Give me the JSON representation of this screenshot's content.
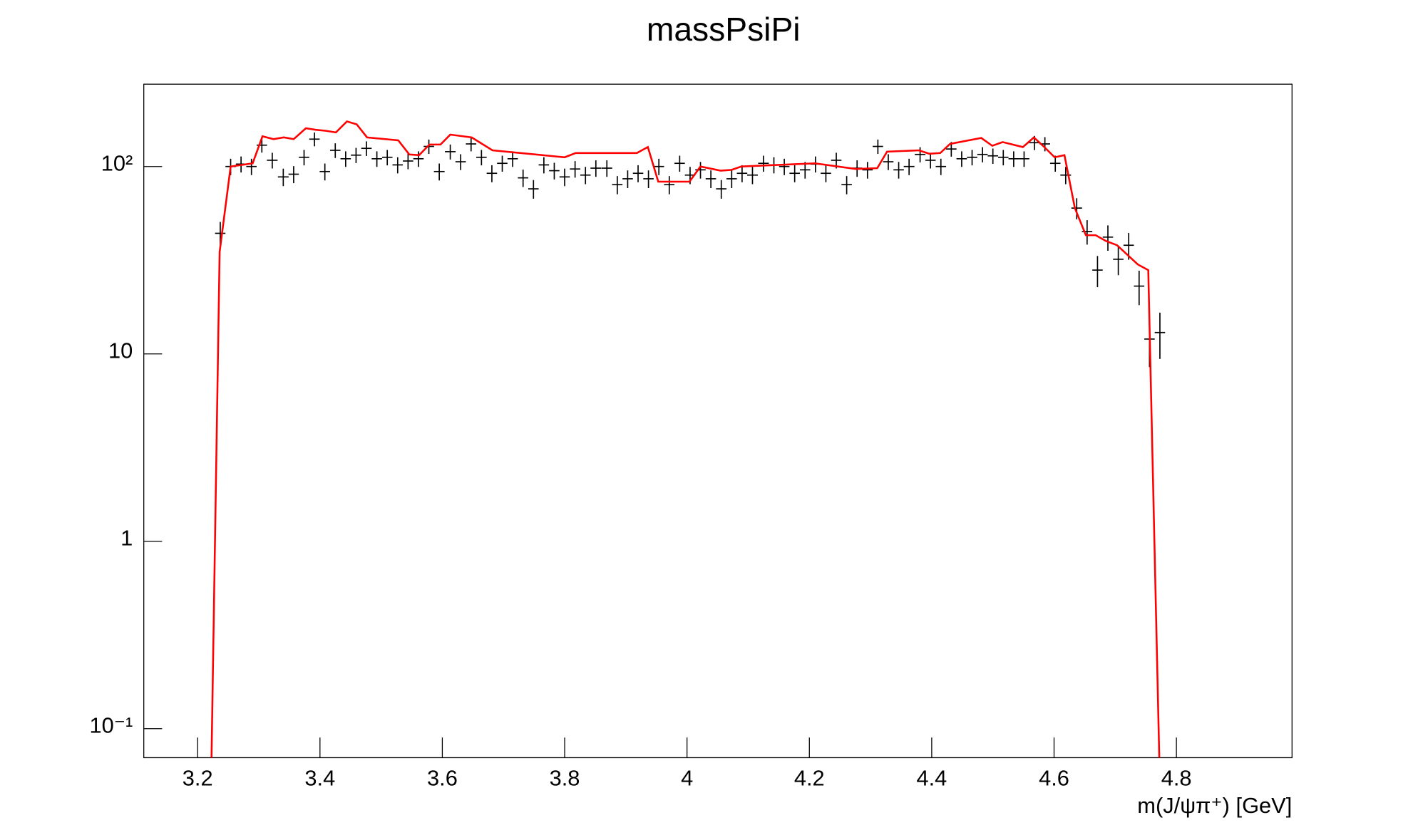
{
  "chart_data": {
    "type": "line",
    "title": "massPsiPi",
    "x_label": "m(J/ψπ⁺) [GeV]",
    "xlim": [
      3.112,
      4.989
    ],
    "xticks": [
      3.2,
      3.4,
      3.6,
      3.8,
      4,
      4.2,
      4.4,
      4.6,
      4.8
    ],
    "ylim": [
      0.07,
      275
    ],
    "ylog": true,
    "yticks": [
      {
        "value": 0.1,
        "label": "10⁻¹"
      },
      1,
      10,
      {
        "value": 100,
        "label": "10²"
      }
    ],
    "series": [
      {
        "style": "points",
        "color": "#000000",
        "x": [
          3.237,
          3.254,
          3.271,
          3.288,
          3.305,
          3.322,
          3.34,
          3.357,
          3.374,
          3.391,
          3.408,
          3.425,
          3.442,
          3.459,
          3.476,
          3.493,
          3.51,
          3.527,
          3.544,
          3.561,
          3.578,
          3.595,
          3.613,
          3.63,
          3.647,
          3.664,
          3.681,
          3.698,
          3.715,
          3.732,
          3.749,
          3.766,
          3.783,
          3.8,
          3.817,
          3.834,
          3.851,
          3.869,
          3.886,
          3.903,
          3.92,
          3.937,
          3.954,
          3.971,
          3.988,
          4.005,
          4.022,
          4.039,
          4.056,
          4.073,
          4.09,
          4.107,
          4.125,
          4.142,
          4.159,
          4.176,
          4.193,
          4.21,
          4.227,
          4.244,
          4.261,
          4.278,
          4.295,
          4.312,
          4.329,
          4.346,
          4.363,
          4.381,
          4.398,
          4.415,
          4.432,
          4.449,
          4.466,
          4.483,
          4.5,
          4.517,
          4.534,
          4.551,
          4.568,
          4.585,
          4.602,
          4.619,
          4.637,
          4.654,
          4.671,
          4.688,
          4.705,
          4.722,
          4.739,
          4.756,
          4.773
        ],
        "values": [
          44,
          100,
          103,
          100,
          130,
          108,
          88,
          91,
          112,
          140,
          94,
          122,
          110,
          115,
          125,
          110,
          112,
          102,
          107,
          110,
          128,
          94,
          120,
          106,
          132,
          112,
          92,
          104,
          110,
          87,
          76,
          102,
          95,
          88,
          97,
          90,
          98,
          98,
          80,
          86,
          92,
          86,
          100,
          80,
          104,
          90,
          96,
          86,
          76,
          86,
          92,
          90,
          104,
          102,
          100,
          92,
          96,
          103,
          92,
          108,
          80,
          98,
          96,
          128,
          106,
          96,
          100,
          116,
          108,
          100,
          124,
          110,
          112,
          116,
          114,
          112,
          110,
          110,
          134,
          132,
          104,
          90,
          60,
          45,
          28,
          42,
          32,
          38,
          23,
          12,
          13
        ],
        "errors": [
          6.6,
          10,
          10.1,
          10,
          11.4,
          10.4,
          9.4,
          9.5,
          10.6,
          11.8,
          9.7,
          11,
          10.5,
          10.7,
          11.2,
          10.5,
          10.6,
          10.1,
          10.3,
          10.5,
          11.3,
          9.7,
          11,
          10.3,
          11.5,
          10.6,
          9.6,
          10.2,
          10.5,
          9.3,
          8.7,
          10.1,
          9.7,
          9.4,
          9.8,
          9.5,
          9.9,
          9.9,
          8.9,
          9.3,
          9.6,
          9.3,
          10,
          8.9,
          10.2,
          9.5,
          9.8,
          9.3,
          8.7,
          9.3,
          9.6,
          9.5,
          10.2,
          10.1,
          10,
          9.6,
          9.8,
          10.1,
          9.6,
          10.4,
          8.9,
          9.9,
          9.8,
          11.3,
          10.3,
          9.8,
          10,
          10.8,
          10.4,
          10,
          11.1,
          10.5,
          10.6,
          10.8,
          10.7,
          10.6,
          10.5,
          10.5,
          11.6,
          11.5,
          10.2,
          9.5,
          7.7,
          6.7,
          5.3,
          6.5,
          5.7,
          6.2,
          4.8,
          3.5,
          3.6
        ]
      },
      {
        "style": "line",
        "color": "#ff0000",
        "x": [
          3.222,
          3.236,
          3.254,
          3.29,
          3.306,
          3.324,
          3.341,
          3.357,
          3.377,
          3.393,
          3.41,
          3.426,
          3.444,
          3.46,
          3.477,
          3.528,
          3.546,
          3.562,
          3.579,
          3.597,
          3.613,
          3.648,
          3.682,
          3.8,
          3.818,
          3.918,
          3.936,
          3.953,
          4.004,
          4.022,
          4.055,
          4.073,
          4.089,
          4.209,
          4.276,
          4.311,
          4.327,
          4.379,
          4.396,
          4.414,
          4.43,
          4.481,
          4.499,
          4.516,
          4.549,
          4.567,
          4.583,
          4.601,
          4.617,
          4.634,
          4.652,
          4.668,
          4.685,
          4.703,
          4.719,
          4.737,
          4.754,
          4.773
        ],
        "values": [
          0.05,
          35,
          100,
          104,
          145,
          140,
          143,
          140,
          160,
          157,
          155,
          152,
          174,
          168,
          143,
          138,
          116,
          115,
          131,
          131,
          148,
          143,
          122,
          112,
          118,
          118,
          127,
          83,
          83,
          100,
          95,
          96,
          100,
          104,
          97,
          98,
          120,
          122,
          117,
          118,
          132,
          142,
          129,
          135,
          127,
          143,
          128,
          112,
          115,
          60,
          43,
          43,
          40,
          38,
          34,
          30,
          28,
          0.05
        ]
      }
    ]
  }
}
